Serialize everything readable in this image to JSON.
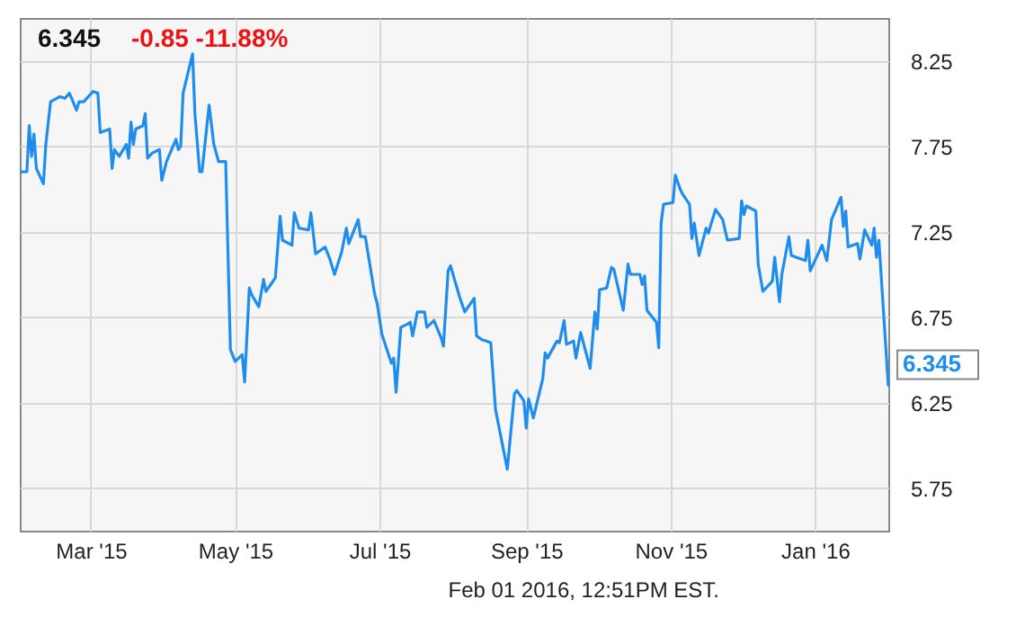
{
  "chart_data": {
    "type": "line",
    "title": "6.345",
    "subtitle": "-0.85  -11.88%",
    "annotations": [
      "Feb 01 2016, 12:51PM EST.",
      {
        "text": "6.345",
        "x": "2016-02-01",
        "y": 6.345
      }
    ],
    "x": [
      "2015-01-30",
      "2015-02-02",
      "2015-02-03",
      "2015-02-04",
      "2015-02-05",
      "2015-02-06",
      "2015-02-09",
      "2015-02-10",
      "2015-02-12",
      "2015-02-16",
      "2015-02-18",
      "2015-02-20",
      "2015-02-23",
      "2015-02-24",
      "2015-02-26",
      "2015-03-02",
      "2015-03-04",
      "2015-03-05",
      "2015-03-09",
      "2015-03-10",
      "2015-03-11",
      "2015-03-13",
      "2015-03-16",
      "2015-03-17",
      "2015-03-18",
      "2015-03-19",
      "2015-03-20",
      "2015-03-23",
      "2015-03-24",
      "2015-03-25",
      "2015-03-27",
      "2015-03-30",
      "2015-03-31",
      "2015-04-02",
      "2015-04-06",
      "2015-04-07",
      "2015-04-08",
      "2015-04-09",
      "2015-04-13",
      "2015-04-14",
      "2015-04-16",
      "2015-04-17",
      "2015-04-20",
      "2015-04-22",
      "2015-04-24",
      "2015-04-27",
      "2015-04-29",
      "2015-05-01",
      "2015-05-04",
      "2015-05-05",
      "2015-05-07",
      "2015-05-08",
      "2015-05-11",
      "2015-05-13",
      "2015-05-14",
      "2015-05-18",
      "2015-05-20",
      "2015-05-21",
      "2015-05-25",
      "2015-05-26",
      "2015-05-28",
      "2015-06-01",
      "2015-06-02",
      "2015-06-04",
      "2015-06-08",
      "2015-06-10",
      "2015-06-12",
      "2015-06-15",
      "2015-06-17",
      "2015-06-18",
      "2015-06-22",
      "2015-06-23",
      "2015-06-25",
      "2015-06-29",
      "2015-06-30",
      "2015-07-02",
      "2015-07-06",
      "2015-07-07",
      "2015-07-08",
      "2015-07-10",
      "2015-07-13",
      "2015-07-14",
      "2015-07-15",
      "2015-07-17",
      "2015-07-20",
      "2015-07-21",
      "2015-07-24",
      "2015-07-27",
      "2015-07-28",
      "2015-07-30",
      "2015-07-31",
      "2015-08-04",
      "2015-08-06",
      "2015-08-10",
      "2015-08-11",
      "2015-08-13",
      "2015-08-17",
      "2015-08-19",
      "2015-08-24",
      "2015-08-27",
      "2015-08-28",
      "2015-08-31",
      "2015-09-01",
      "2015-09-02",
      "2015-09-04",
      "2015-09-08",
      "2015-09-09",
      "2015-09-10",
      "2015-09-14",
      "2015-09-15",
      "2015-09-17",
      "2015-09-18",
      "2015-09-21",
      "2015-09-22",
      "2015-09-24",
      "2015-09-28",
      "2015-09-30",
      "2015-10-01",
      "2015-10-02",
      "2015-10-05",
      "2015-10-07",
      "2015-10-08",
      "2015-10-09",
      "2015-10-12",
      "2015-10-14",
      "2015-10-15",
      "2015-10-19",
      "2015-10-20",
      "2015-10-21",
      "2015-10-22",
      "2015-10-26",
      "2015-10-27",
      "2015-10-28",
      "2015-10-29",
      "2015-11-02",
      "2015-11-03",
      "2015-11-05",
      "2015-11-06",
      "2015-11-09",
      "2015-11-10",
      "2015-11-11",
      "2015-11-13",
      "2015-11-16",
      "2015-11-17",
      "2015-11-18",
      "2015-11-20",
      "2015-11-23",
      "2015-11-24",
      "2015-11-25",
      "2015-11-30",
      "2015-12-01",
      "2015-12-02",
      "2015-12-03",
      "2015-12-07",
      "2015-12-08",
      "2015-12-10",
      "2015-12-14",
      "2015-12-15",
      "2015-12-17",
      "2015-12-18",
      "2015-12-21",
      "2015-12-22",
      "2015-12-28",
      "2015-12-29",
      "2015-12-30",
      "2016-01-04",
      "2016-01-06",
      "2016-01-08",
      "2016-01-12",
      "2016-01-13",
      "2016-01-14",
      "2016-01-15",
      "2016-01-19",
      "2016-01-20",
      "2016-01-22",
      "2016-01-25",
      "2016-01-26",
      "2016-01-27",
      "2016-01-28",
      "2016-02-01"
    ],
    "series": [
      {
        "color": "#1f8ded",
        "values": [
          7.6,
          7.6,
          7.87,
          7.69,
          7.82,
          7.62,
          7.53,
          7.76,
          8.01,
          8.04,
          8.03,
          8.06,
          7.96,
          8.01,
          8.01,
          8.07,
          8.06,
          7.83,
          7.85,
          7.62,
          7.73,
          7.69,
          7.76,
          7.68,
          7.89,
          7.76,
          7.85,
          7.87,
          7.94,
          7.68,
          7.71,
          7.73,
          7.55,
          7.66,
          7.79,
          7.73,
          7.75,
          8.06,
          8.29,
          7.94,
          7.6,
          7.6,
          7.99,
          7.76,
          7.66,
          7.66,
          6.56,
          6.49,
          6.53,
          6.37,
          6.92,
          6.88,
          6.81,
          6.97,
          6.9,
          6.98,
          7.34,
          7.2,
          7.17,
          7.36,
          7.27,
          7.26,
          7.36,
          7.12,
          7.16,
          7.09,
          7.0,
          7.13,
          7.27,
          7.18,
          7.32,
          7.22,
          7.22,
          6.88,
          6.83,
          6.65,
          6.48,
          6.51,
          6.31,
          6.69,
          6.71,
          6.72,
          6.64,
          6.78,
          6.78,
          6.69,
          6.73,
          6.63,
          6.58,
          7.02,
          7.05,
          6.86,
          6.78,
          6.86,
          6.64,
          6.62,
          6.6,
          6.21,
          5.86,
          6.3,
          6.32,
          6.26,
          6.1,
          6.27,
          6.16,
          6.39,
          6.54,
          6.51,
          6.61,
          6.6,
          6.73,
          6.59,
          6.61,
          6.51,
          6.66,
          6.45,
          6.78,
          6.68,
          6.91,
          6.92,
          7.04,
          7.03,
          6.97,
          6.79,
          7.06,
          7.0,
          7.0,
          6.94,
          6.99,
          6.79,
          6.72,
          6.57,
          7.3,
          7.41,
          7.42,
          7.58,
          7.5,
          7.47,
          7.41,
          7.21,
          7.3,
          7.11,
          7.27,
          7.24,
          7.29,
          7.38,
          7.32,
          7.26,
          7.2,
          7.21,
          7.43,
          7.35,
          7.4,
          7.37,
          7.06,
          6.9,
          6.96,
          7.1,
          6.84,
          7.0,
          7.22,
          7.11,
          7.08,
          7.2,
          7.02,
          7.17,
          7.08,
          7.32,
          7.45,
          7.28,
          7.37,
          7.16,
          7.18,
          7.09,
          7.26,
          7.17,
          7.27,
          7.1,
          7.2,
          6.345
        ]
      }
    ],
    "xlim": [
      "2015-01-30",
      "2016-02-01"
    ],
    "xticks": [
      {
        "value": "2015-03-01",
        "label": "Mar '15"
      },
      {
        "value": "2015-05-01",
        "label": "May '15"
      },
      {
        "value": "2015-07-01",
        "label": "Jul '15"
      },
      {
        "value": "2015-09-01",
        "label": "Sep '15"
      },
      {
        "value": "2015-11-01",
        "label": "Nov '15"
      },
      {
        "value": "2016-01-01",
        "label": "Jan '16"
      }
    ],
    "ylim": [
      5.5,
      8.5
    ],
    "yticks": [
      5.75,
      6.25,
      6.75,
      7.25,
      7.75,
      8.25
    ],
    "grid": true,
    "marker": "none",
    "line_style": "solid"
  }
}
